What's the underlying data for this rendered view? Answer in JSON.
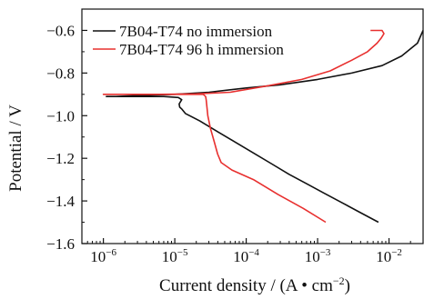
{
  "chart_data": {
    "type": "line",
    "xlabel": "Current density / (A • cm",
    "xlabel_sup": "−2",
    "xlabel_end": ")",
    "ylabel": "Potential / V",
    "xscale": "log",
    "xlim": [
      5e-07,
      0.03
    ],
    "ylim": [
      -1.6,
      -0.5
    ],
    "xticks": [
      1e-06,
      1e-05,
      0.0001,
      0.001,
      0.01
    ],
    "xtick_labels": [
      {
        "base": "10",
        "exp": "−6"
      },
      {
        "base": "10",
        "exp": "−5"
      },
      {
        "base": "10",
        "exp": "−4"
      },
      {
        "base": "10",
        "exp": "−3"
      },
      {
        "base": "10",
        "exp": "−2"
      }
    ],
    "yticks": [
      -0.6,
      -0.8,
      -1.0,
      -1.2,
      -1.4,
      -1.6
    ],
    "ytick_labels": [
      "−0.6",
      "−0.8",
      "−1.0",
      "−1.2",
      "−1.4",
      "−1.6"
    ],
    "legend_position": "top-left",
    "series": [
      {
        "name": "7B04-T74 no immersion",
        "color": "#111111",
        "x": [
          0.0071,
          0.00398,
          0.00224,
          0.00126,
          0.000708,
          0.000398,
          0.000224,
          0.000126,
          7.08e-05,
          3.98e-05,
          2.24e-05,
          1.41e-05,
          1.26e-05,
          1.17e-05,
          1.15e-05,
          1.25e-05,
          1.12e-05,
          7e-06,
          4e-06,
          2.5e-06,
          1.5e-06,
          1.1e-06,
          1.5e-06,
          3e-06,
          1e-05,
          3e-05,
          0.0001,
          0.0003,
          0.001,
          0.003,
          0.008,
          0.015,
          0.025,
          0.03
        ],
        "y": [
          -1.5,
          -1.455,
          -1.41,
          -1.365,
          -1.32,
          -1.275,
          -1.225,
          -1.175,
          -1.125,
          -1.075,
          -1.025,
          -0.99,
          -0.97,
          -0.96,
          -0.945,
          -0.925,
          -0.915,
          -0.91,
          -0.91,
          -0.91,
          -0.91,
          -0.91,
          -0.91,
          -0.905,
          -0.9,
          -0.89,
          -0.87,
          -0.855,
          -0.83,
          -0.8,
          -0.765,
          -0.72,
          -0.66,
          -0.6
        ]
      },
      {
        "name": "7B04-T74 96 h immersion",
        "color": "#e8302f",
        "x": [
          0.0013,
          0.00063,
          0.00028,
          0.000126,
          6.31e-05,
          4.47e-05,
          3.98e-05,
          3.55e-05,
          3.16e-05,
          2.9e-05,
          2.8e-05,
          2.75e-05,
          2.7e-05,
          2.5e-05,
          1.5e-05,
          6e-06,
          2e-06,
          1e-06,
          2e-06,
          6e-06,
          2e-05,
          6e-05,
          0.0002,
          0.0006,
          0.0015,
          0.003,
          0.005,
          0.0068,
          0.0078,
          0.0085,
          0.008,
          0.0065,
          0.0055
        ],
        "y": [
          -1.5,
          -1.435,
          -1.37,
          -1.3,
          -1.255,
          -1.22,
          -1.18,
          -1.12,
          -1.06,
          -1.0,
          -0.95,
          -0.925,
          -0.91,
          -0.9,
          -0.9,
          -0.9,
          -0.9,
          -0.9,
          -0.9,
          -0.9,
          -0.898,
          -0.89,
          -0.86,
          -0.83,
          -0.79,
          -0.74,
          -0.7,
          -0.66,
          -0.635,
          -0.615,
          -0.6,
          -0.6,
          -0.6
        ]
      }
    ]
  }
}
